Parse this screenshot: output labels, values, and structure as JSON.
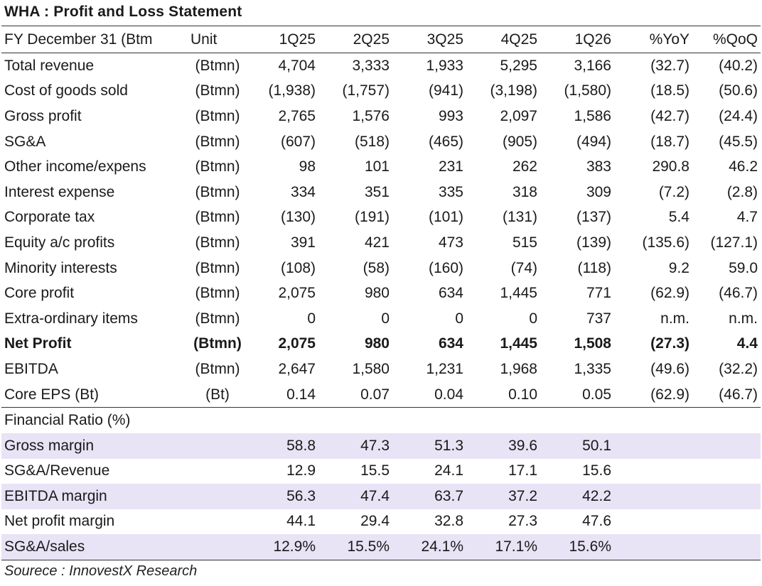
{
  "title": "WHA : Profit and Loss Statement",
  "header": [
    "FY December 31 (Btm",
    "Unit",
    "1Q25",
    "2Q25",
    "3Q25",
    "4Q25",
    "1Q26",
    "%YoY",
    "%QoQ"
  ],
  "rows": [
    {
      "label": "Total revenue",
      "unit": "(Btmn)",
      "values": [
        "4,704",
        "3,333",
        "1,933",
        "5,295",
        "3,166"
      ],
      "yoy": "(32.7)",
      "qoq": "(40.2)"
    },
    {
      "label": "Cost of goods sold",
      "unit": "(Btmn)",
      "values": [
        "(1,938)",
        "(1,757)",
        "(941)",
        "(3,198)",
        "(1,580)"
      ],
      "yoy": "(18.5)",
      "qoq": "(50.6)"
    },
    {
      "label": "Gross profit",
      "unit": "(Btmn)",
      "values": [
        "2,765",
        "1,576",
        "993",
        "2,097",
        "1,586"
      ],
      "yoy": "(42.7)",
      "qoq": "(24.4)"
    },
    {
      "label": "SG&A",
      "unit": "(Btmn)",
      "values": [
        "(607)",
        "(518)",
        "(465)",
        "(905)",
        "(494)"
      ],
      "yoy": "(18.7)",
      "qoq": "(45.5)"
    },
    {
      "label": "Other income/expens",
      "unit": "(Btmn)",
      "values": [
        "98",
        "101",
        "231",
        "262",
        "383"
      ],
      "yoy": "290.8",
      "qoq": "46.2"
    },
    {
      "label": "Interest expense",
      "unit": "(Btmn)",
      "values": [
        "334",
        "351",
        "335",
        "318",
        "309"
      ],
      "yoy": "(7.2)",
      "qoq": "(2.8)"
    },
    {
      "label": "Corporate tax",
      "unit": "(Btmn)",
      "values": [
        "(130)",
        "(191)",
        "(101)",
        "(131)",
        "(137)"
      ],
      "yoy": "5.4",
      "qoq": "4.7"
    },
    {
      "label": "Equity a/c profits",
      "unit": "(Btmn)",
      "values": [
        "391",
        "421",
        "473",
        "515",
        "(139)"
      ],
      "yoy": "(135.6)",
      "qoq": "(127.1)"
    },
    {
      "label": "Minority interests",
      "unit": "(Btmn)",
      "values": [
        "(108)",
        "(58)",
        "(160)",
        "(74)",
        "(118)"
      ],
      "yoy": "9.2",
      "qoq": "59.0"
    },
    {
      "label": "Core profit",
      "unit": "(Btmn)",
      "values": [
        "2,075",
        "980",
        "634",
        "1,445",
        "771"
      ],
      "yoy": "(62.9)",
      "qoq": "(46.7)"
    },
    {
      "label": "Extra-ordinary items",
      "unit": "(Btmn)",
      "values": [
        "0",
        "0",
        "0",
        "0",
        "737"
      ],
      "yoy": "n.m.",
      "qoq": "n.m."
    },
    {
      "label": "Net Profit",
      "unit": "(Btmn)",
      "values": [
        "2,075",
        "980",
        "634",
        "1,445",
        "1,508"
      ],
      "yoy": "(27.3)",
      "qoq": "4.4"
    },
    {
      "label": "EBITDA",
      "unit": "(Btmn)",
      "values": [
        "2,647",
        "1,580",
        "1,231",
        "1,968",
        "1,335"
      ],
      "yoy": "(49.6)",
      "qoq": "(32.2)"
    },
    {
      "label": "Core EPS (Bt)",
      "unit": "(Bt)",
      "values": [
        "0.14",
        "0.07",
        "0.04",
        "0.10",
        "0.05"
      ],
      "yoy": "(62.9)",
      "qoq": "(46.7)"
    }
  ],
  "ratio_section": "Financial Ratio (%)",
  "ratios": [
    {
      "label": "Gross margin",
      "values": [
        "58.8",
        "47.3",
        "51.3",
        "39.6",
        "50.1"
      ]
    },
    {
      "label": "SG&A/Revenue",
      "values": [
        "12.9",
        "15.5",
        "24.1",
        "17.1",
        "15.6"
      ]
    },
    {
      "label": "EBITDA margin",
      "values": [
        "56.3",
        "47.4",
        "63.7",
        "37.2",
        "42.2"
      ]
    },
    {
      "label": "Net profit margin",
      "values": [
        "44.1",
        "29.4",
        "32.8",
        "27.3",
        "47.6"
      ]
    },
    {
      "label": "SG&A/sales",
      "values": [
        "12.9%",
        "15.5%",
        "24.1%",
        "17.1%",
        "15.6%"
      ]
    }
  ],
  "source": "Sourece : InnovestX Research",
  "colors": {
    "shade": "#e8e3f5",
    "rule": "#333333"
  }
}
